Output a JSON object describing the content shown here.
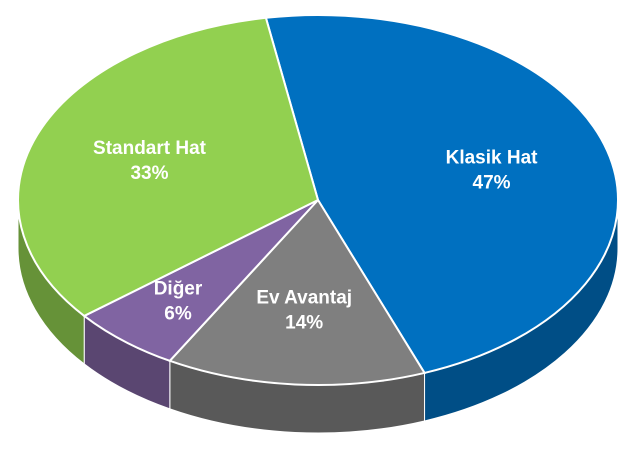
{
  "chart_data": {
    "type": "pie",
    "categories": [
      "Klasik Hat",
      "Ev Avantaj",
      "Diğer",
      "Standart Hat"
    ],
    "values": [
      47,
      14,
      6,
      33
    ],
    "value_labels": [
      "47%",
      "14%",
      "6%",
      "33%"
    ],
    "colors": [
      "#0070c0",
      "#7f7f7f",
      "#8064a2",
      "#92d050"
    ]
  }
}
